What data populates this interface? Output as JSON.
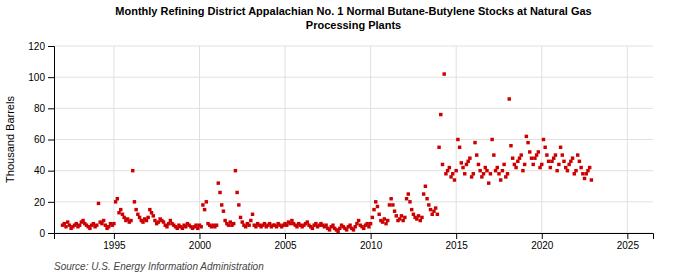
{
  "chart_data": {
    "type": "scatter",
    "title": "Monthly Refining District Appalachian No. 1 Normal Butane-Butylene Stocks at Natural Gas\nProcessing Plants",
    "ylabel": "Thousand Barrels",
    "annotations": [
      "Source: U.S. Energy Information Administration"
    ],
    "color": "#cc0000",
    "marker": "square",
    "grid": true,
    "xlim": [
      1991.5,
      2026.5
    ],
    "ylim": [
      0,
      120
    ],
    "xticks": [
      1995,
      2000,
      2005,
      2010,
      2015,
      2020,
      2025
    ],
    "yticks": [
      0,
      20,
      40,
      60,
      80,
      100,
      120
    ],
    "x": [
      1992.0,
      1992.1,
      1992.2,
      1992.3,
      1992.4,
      1992.5,
      1992.6,
      1992.7,
      1992.8,
      1992.9,
      1993.0,
      1993.1,
      1993.2,
      1993.3,
      1993.4,
      1993.5,
      1993.6,
      1993.7,
      1993.8,
      1993.9,
      1994.0,
      1994.1,
      1994.2,
      1994.3,
      1994.4,
      1994.5,
      1994.6,
      1994.7,
      1994.8,
      1994.9,
      1995.0,
      1995.1,
      1995.2,
      1995.3,
      1995.4,
      1995.5,
      1995.6,
      1995.7,
      1995.8,
      1995.9,
      1996.0,
      1996.1,
      1996.2,
      1996.3,
      1996.4,
      1996.5,
      1996.6,
      1996.7,
      1996.8,
      1996.9,
      1997.0,
      1997.1,
      1997.2,
      1997.3,
      1997.4,
      1997.5,
      1997.6,
      1997.7,
      1997.8,
      1997.9,
      1998.0,
      1998.1,
      1998.2,
      1998.3,
      1998.4,
      1998.5,
      1998.6,
      1998.7,
      1998.8,
      1998.9,
      1999.0,
      1999.1,
      1999.2,
      1999.3,
      1999.4,
      1999.5,
      1999.6,
      1999.7,
      1999.8,
      1999.9,
      2000.0,
      2000.1,
      2000.2,
      2000.3,
      2000.4,
      2000.5,
      2000.6,
      2000.7,
      2000.8,
      2000.9,
      2001.0,
      2001.1,
      2001.2,
      2001.3,
      2001.4,
      2001.5,
      2001.6,
      2001.7,
      2001.8,
      2001.9,
      2002.0,
      2002.1,
      2002.2,
      2002.3,
      2002.4,
      2002.5,
      2002.6,
      2002.7,
      2002.8,
      2002.9,
      2003.0,
      2003.1,
      2003.2,
      2003.3,
      2003.4,
      2003.5,
      2003.6,
      2003.7,
      2003.8,
      2003.9,
      2004.0,
      2004.1,
      2004.2,
      2004.3,
      2004.4,
      2004.5,
      2004.6,
      2004.7,
      2004.8,
      2004.9,
      2005.0,
      2005.1,
      2005.2,
      2005.3,
      2005.4,
      2005.5,
      2005.6,
      2005.7,
      2005.8,
      2005.9,
      2006.0,
      2006.1,
      2006.2,
      2006.3,
      2006.4,
      2006.5,
      2006.6,
      2006.7,
      2006.8,
      2006.9,
      2007.0,
      2007.1,
      2007.2,
      2007.3,
      2007.4,
      2007.5,
      2007.6,
      2007.7,
      2007.8,
      2007.9,
      2008.0,
      2008.1,
      2008.2,
      2008.3,
      2008.4,
      2008.5,
      2008.6,
      2008.7,
      2008.8,
      2008.9,
      2009.0,
      2009.1,
      2009.2,
      2009.3,
      2009.4,
      2009.5,
      2009.6,
      2009.7,
      2009.8,
      2009.9,
      2010.0,
      2010.1,
      2010.2,
      2010.3,
      2010.4,
      2010.5,
      2010.6,
      2010.7,
      2010.8,
      2010.9,
      2011.0,
      2011.1,
      2011.2,
      2011.3,
      2011.4,
      2011.5,
      2011.6,
      2011.7,
      2011.8,
      2011.9,
      2012.0,
      2012.1,
      2012.2,
      2012.3,
      2012.4,
      2012.5,
      2012.6,
      2012.7,
      2012.8,
      2012.9,
      2013.0,
      2013.1,
      2013.2,
      2013.3,
      2013.4,
      2013.5,
      2013.6,
      2013.7,
      2013.8,
      2013.9,
      2014.0,
      2014.1,
      2014.2,
      2014.3,
      2014.4,
      2014.5,
      2014.6,
      2014.7,
      2014.8,
      2014.9,
      2015.0,
      2015.1,
      2015.2,
      2015.3,
      2015.4,
      2015.5,
      2015.6,
      2015.7,
      2015.8,
      2015.9,
      2016.0,
      2016.1,
      2016.2,
      2016.3,
      2016.4,
      2016.5,
      2016.6,
      2016.7,
      2016.8,
      2016.9,
      2017.0,
      2017.1,
      2017.2,
      2017.3,
      2017.4,
      2017.5,
      2017.6,
      2017.7,
      2017.8,
      2017.9,
      2018.0,
      2018.1,
      2018.2,
      2018.3,
      2018.4,
      2018.5,
      2018.6,
      2018.7,
      2018.8,
      2018.9,
      2019.0,
      2019.1,
      2019.2,
      2019.3,
      2019.4,
      2019.5,
      2019.6,
      2019.7,
      2019.8,
      2019.9,
      2020.0,
      2020.1,
      2020.2,
      2020.3,
      2020.4,
      2020.5,
      2020.6,
      2020.7,
      2020.8,
      2020.9,
      2021.0,
      2021.1,
      2021.2,
      2021.3,
      2021.4,
      2021.5,
      2021.6,
      2021.7,
      2021.8,
      2021.9,
      2022.0,
      2022.1,
      2022.2,
      2022.3,
      2022.4,
      2022.5,
      2022.6,
      2022.7,
      2022.8,
      2022.9
    ],
    "values": [
      5,
      6,
      4,
      7,
      5,
      3,
      4,
      5,
      6,
      4,
      5,
      7,
      8,
      6,
      5,
      4,
      3,
      5,
      6,
      4,
      5,
      19,
      7,
      6,
      8,
      5,
      3,
      4,
      6,
      5,
      6,
      20,
      22,
      13,
      15,
      12,
      10,
      8,
      9,
      7,
      8,
      40,
      20,
      15,
      12,
      10,
      8,
      7,
      9,
      8,
      10,
      15,
      13,
      11,
      8,
      6,
      7,
      9,
      8,
      7,
      5,
      4,
      6,
      8,
      6,
      5,
      4,
      3,
      5,
      4,
      3,
      5,
      4,
      6,
      5,
      4,
      3,
      4,
      5,
      3,
      5,
      4,
      18,
      15,
      20,
      6,
      5,
      4,
      5,
      4,
      5,
      32,
      26,
      18,
      14,
      8,
      6,
      5,
      7,
      5,
      6,
      40,
      26,
      18,
      10,
      7,
      5,
      4,
      6,
      5,
      8,
      12,
      5,
      4,
      6,
      5,
      4,
      5,
      6,
      4,
      5,
      6,
      4,
      5,
      5,
      4,
      6,
      5,
      4,
      5,
      6,
      5,
      7,
      6,
      8,
      6,
      5,
      4,
      6,
      5,
      4,
      5,
      6,
      7,
      5,
      4,
      3,
      5,
      6,
      4,
      5,
      6,
      5,
      4,
      5,
      3,
      2,
      4,
      5,
      3,
      2,
      1,
      3,
      5,
      4,
      3,
      2,
      4,
      5,
      3,
      2,
      4,
      6,
      8,
      5,
      4,
      3,
      5,
      6,
      4,
      6,
      10,
      15,
      20,
      17,
      12,
      8,
      7,
      9,
      6,
      8,
      18,
      22,
      18,
      14,
      11,
      8,
      9,
      11,
      8,
      10,
      22,
      25,
      20,
      15,
      12,
      10,
      9,
      11,
      8,
      10,
      25,
      30,
      22,
      18,
      15,
      12,
      14,
      16,
      12,
      55,
      76,
      44,
      102,
      38,
      40,
      42,
      36,
      38,
      34,
      40,
      60,
      55,
      45,
      42,
      38,
      44,
      46,
      48,
      36,
      38,
      58,
      50,
      44,
      40,
      36,
      38,
      42,
      40,
      32,
      38,
      60,
      50,
      40,
      42,
      38,
      34,
      40,
      44,
      36,
      38,
      86,
      56,
      48,
      44,
      42,
      46,
      48,
      50,
      40,
      44,
      62,
      58,
      52,
      48,
      44,
      48,
      50,
      52,
      42,
      44,
      60,
      55,
      50,
      46,
      42,
      46,
      48,
      50,
      40,
      44,
      55,
      50,
      46,
      42,
      40,
      44,
      46,
      48,
      38,
      40,
      50,
      46,
      42,
      38,
      35,
      38,
      40,
      42,
      34
    ]
  }
}
